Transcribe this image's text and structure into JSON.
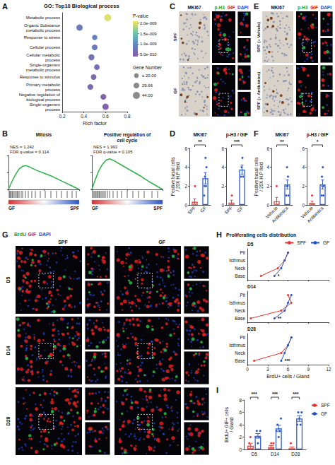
{
  "chart_data": [
    {
      "panel": "A",
      "type": "scatter",
      "title": "GO: Top10 Biological process",
      "xlabel": "Rich factor",
      "categories": [
        "Metabolic process",
        "Organic Substance metabolic process",
        "Response to stress",
        "Cellular process",
        "Cellular metabolic process",
        "Single-organism metabolic process",
        "Response to stimulus",
        "Primary metabolic process",
        "Negative regulation of biological process",
        "Single-organism process"
      ],
      "x": [
        0.62,
        0.36,
        0.5,
        0.5,
        0.47,
        0.52,
        0.49,
        0.46,
        0.58,
        0.6
      ],
      "p_values": [
        2e-09,
        8e-10,
        9e-10,
        8e-10,
        7e-10,
        7e-10,
        6e-10,
        6e-10,
        5e-10,
        5e-10
      ],
      "gene_numbers": [
        44,
        35,
        25,
        30,
        32,
        28,
        28,
        30,
        30,
        35
      ],
      "xlim": [
        0.2,
        0.8
      ],
      "xticks": [
        0.2,
        0.4,
        0.6,
        0.8
      ],
      "grid": false,
      "color_title": "P-value",
      "color_range": [
        4e-10,
        2.1e-09
      ],
      "color_ticks": [
        {
          "value": 2e-09,
          "label": "2.0e-009"
        },
        {
          "value": 1.5e-09,
          "label": "1.5e-009"
        },
        {
          "value": 1e-09,
          "label": "1.0e-009"
        },
        {
          "value": 5e-10,
          "label": "5.0e-010"
        }
      ],
      "size_title": "Gene Number",
      "size_legend": [
        {
          "value": 20,
          "label": "≤ 20.00"
        },
        {
          "value": 29.66,
          "label": "29.66"
        },
        {
          "value": 44,
          "label": "44.00"
        }
      ]
    },
    {
      "panel": "B",
      "type": "line",
      "subplots": [
        {
          "title": "Mitosis",
          "annotations": [
            "NES = 1.242",
            "FDR q-value = 0.114"
          ],
          "x": [
            0,
            5,
            10,
            15,
            20,
            25,
            30,
            40,
            50,
            60,
            70,
            80,
            90,
            100
          ],
          "values": [
            0,
            0.12,
            0.22,
            0.3,
            0.34,
            0.35,
            0.33,
            0.28,
            0.24,
            0.2,
            0.15,
            0.1,
            0.05,
            0
          ],
          "hits": [
            1,
            2,
            3,
            5,
            6,
            8,
            10,
            12,
            13,
            15,
            18,
            20,
            24,
            28,
            33,
            38,
            45,
            52,
            60,
            68,
            75,
            83,
            90,
            96
          ],
          "color": "#2db34a",
          "xlim": [
            0,
            100
          ],
          "xticks": [
            0,
            50,
            100
          ],
          "ylim": [
            0,
            0.5
          ],
          "yticks": [
            0,
            0.25,
            0.5
          ],
          "tick_labels": false,
          "phenotypes": [
            "GF",
            "SPF"
          ]
        },
        {
          "title": "Positive regulation of cell cycle",
          "annotations": [
            "NES = 1.993",
            "FDR q-value = 0.105"
          ],
          "x": [
            0,
            5,
            10,
            15,
            20,
            25,
            30,
            40,
            50,
            60,
            70,
            80,
            90,
            100
          ],
          "values": [
            0,
            0.15,
            0.28,
            0.37,
            0.43,
            0.45,
            0.43,
            0.37,
            0.31,
            0.25,
            0.19,
            0.12,
            0.06,
            0
          ],
          "hits": [
            1,
            2,
            4,
            5,
            7,
            8,
            10,
            11,
            13,
            15,
            17,
            19,
            22,
            25,
            30,
            36,
            42,
            50,
            58,
            66,
            74,
            85,
            93
          ],
          "color": "#2db34a",
          "xlim": [
            0,
            100
          ],
          "xticks": [
            0,
            50,
            100
          ],
          "ylim": [
            0,
            0.5
          ],
          "yticks": [
            0,
            0.25,
            0.5
          ],
          "tick_labels": false,
          "phenotypes": [
            "GF",
            "SPF"
          ]
        }
      ]
    },
    {
      "panel": "D",
      "type": "bar",
      "ylabel": "Positive basal cells / 20X H.P field",
      "subplots": [
        {
          "title": "MKI67",
          "categories": [
            "SPF",
            "GF"
          ],
          "values": [
            0.33,
            2.83
          ],
          "errors": [
            0.33,
            0.6
          ],
          "points": [
            [
              0,
              0,
              0,
              2,
              0,
              0
            ],
            [
              1,
              2,
              3,
              5,
              2,
              4
            ]
          ],
          "colors": [
            "#e8332f",
            "#2150c8"
          ],
          "significance": "**",
          "ylim": [
            0,
            6
          ],
          "yticks": [
            0,
            2,
            4,
            6
          ]
        },
        {
          "title": "p-H3 / GIF",
          "categories": [
            "SPF",
            "GF"
          ],
          "values": [
            0.25,
            3.75
          ],
          "errors": [
            0.25,
            0.48
          ],
          "points": [
            [
              0,
              0,
              1,
              0
            ],
            [
              3,
              4,
              5,
              3
            ]
          ],
          "colors": [
            "#e8332f",
            "#2150c8"
          ],
          "significance": "***",
          "ylim": [
            0,
            6
          ],
          "yticks": [
            0,
            2,
            4,
            6
          ]
        }
      ]
    },
    {
      "panel": "F",
      "type": "bar",
      "ylabel": "Positive basal cells / 20X H.P field",
      "subplots": [
        {
          "title": "MKI67",
          "categories": [
            "Vehicle",
            "Antibiotics"
          ],
          "values": [
            0.4,
            2.17
          ],
          "errors": [
            0.4,
            0.48
          ],
          "points": [
            [
              0,
              0,
              2,
              0,
              0
            ],
            [
              1,
              2,
              4,
              2,
              3,
              1
            ]
          ],
          "colors": [
            "#e8332f",
            "#2150c8"
          ],
          "significance": "**",
          "ylim": [
            0,
            6
          ],
          "yticks": [
            0,
            2,
            4,
            6
          ]
        },
        {
          "title": "p-H3 / GIF",
          "categories": [
            "Vehicle",
            "Antibiotics"
          ],
          "values": [
            0.2,
            2.17
          ],
          "errors": [
            0.2,
            0.48
          ],
          "points": [
            [
              0,
              0,
              1,
              0,
              0
            ],
            [
              1,
              3,
              2,
              4,
              1,
              2
            ]
          ],
          "colors": [
            "#e8332f",
            "#2150c8"
          ],
          "significance": "*",
          "ylim": [
            0,
            6
          ],
          "yticks": [
            0,
            2,
            4,
            6
          ]
        }
      ]
    },
    {
      "panel": "H",
      "type": "line",
      "title": "Proliferating cells distribution",
      "xlabel": "BrdU+ cells / Gland",
      "categories": [
        "Base",
        "Neck",
        "Isthmus",
        "Pit"
      ],
      "xlim": [
        0,
        12
      ],
      "xticks": [
        0,
        3,
        6,
        9,
        12
      ],
      "legend": "top right",
      "subplots": [
        {
          "title": "D5",
          "significance": "*",
          "tick_labels": "y",
          "series": [
            {
              "name": "SPF",
              "color": "#e8332f",
              "values": [
                2,
                4.5,
                5.5,
                6
              ]
            },
            {
              "name": "GF",
              "color": "#2150c8",
              "values": [
                4,
                5,
                5.5,
                6
              ]
            }
          ]
        },
        {
          "title": "D14",
          "significance": "**",
          "tick_labels": "y",
          "series": [
            {
              "name": "SPF",
              "color": "#e8332f",
              "values": [
                0.5,
                5,
                6.5,
                6
              ]
            },
            {
              "name": "GF",
              "color": "#2150c8",
              "values": [
                4,
                5.5,
                6,
                6.5
              ]
            }
          ]
        },
        {
          "title": "D28",
          "significance": "***",
          "series": [
            {
              "name": "SPF",
              "color": "#e8332f",
              "values": [
                1,
                5,
                6,
                6.5
              ]
            },
            {
              "name": "GF",
              "color": "#2150c8",
              "values": [
                5,
                5.5,
                6,
                6.5
              ]
            }
          ]
        }
      ]
    },
    {
      "panel": "I",
      "type": "bar",
      "ylabel": "BrdU+ GIF+ cells / Gland",
      "categories": [
        "D5",
        "D14",
        "D28"
      ],
      "ylim": [
        0,
        8
      ],
      "yticks": [
        0,
        2,
        4,
        6,
        8
      ],
      "legend": "right",
      "significance": [
        "***",
        "***",
        "***"
      ],
      "series": [
        {
          "name": "SPF",
          "color": "#e8332f",
          "values": [
            0.6,
            0.4,
            0.2
          ],
          "errors": [
            0.4,
            0.24,
            0.2
          ],
          "points": [
            [
              0,
              1,
              2,
              0,
              0
            ],
            [
              0,
              0,
              1,
              0,
              1
            ],
            [
              0,
              1,
              0,
              0,
              0
            ]
          ]
        },
        {
          "name": "GF",
          "color": "#2150c8",
          "values": [
            2.2,
            3.4,
            5
          ],
          "errors": [
            0.37,
            0.51,
            0.45
          ],
          "points": [
            [
              2,
              3,
              1,
              2,
              3
            ],
            [
              3,
              4,
              2,
              3,
              5
            ],
            [
              4,
              6,
              5,
              4,
              6
            ]
          ]
        }
      ]
    }
  ],
  "images": [
    {
      "panel": "C",
      "columns": [
        {
          "title": "MKI67"
        },
        {
          "channels": [
            {
              "name": "p-H3",
              "color": "#23a33a"
            },
            {
              "name": "GIF",
              "color": "#e02020"
            },
            {
              "name": "DAPI",
              "color": "#2646d4"
            }
          ]
        }
      ],
      "rows": [
        "SPF",
        "GF"
      ]
    },
    {
      "panel": "E",
      "columns": [
        {
          "title": "MKI67"
        },
        {
          "channels": [
            {
              "name": "p-H3",
              "color": "#23a33a"
            },
            {
              "name": "GIF",
              "color": "#e02020"
            },
            {
              "name": "DAPI",
              "color": "#2646d4"
            }
          ]
        }
      ],
      "rows": [
        "SPF (+ Vehicle)",
        "SPF (+ Antibiotics)"
      ]
    },
    {
      "panel": "G",
      "channels": [
        {
          "name": "BrdU",
          "color": "#23a33a"
        },
        {
          "name": "GIF",
          "color": "#e02020"
        },
        {
          "name": "DAPI",
          "color": "#2646d4"
        }
      ],
      "columns": [
        "SPF",
        "GF"
      ],
      "rows": [
        "D5",
        "D14",
        "D28"
      ]
    }
  ]
}
